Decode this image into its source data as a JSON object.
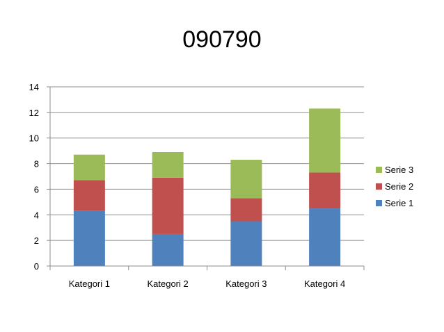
{
  "slide": {
    "title": "090790"
  },
  "chart_data": {
    "type": "bar",
    "stacked": true,
    "title": "090790",
    "categories": [
      "Kategori 1",
      "Kategori 2",
      "Kategori 3",
      "Kategori 4"
    ],
    "series": [
      {
        "name": "Serie 1",
        "values": [
          4.3,
          2.5,
          3.5,
          4.5
        ],
        "color": "#4f81bd"
      },
      {
        "name": "Serie 2",
        "values": [
          2.4,
          4.4,
          1.8,
          2.8
        ],
        "color": "#c0504d"
      },
      {
        "name": "Serie 3",
        "values": [
          2.0,
          2.0,
          3.0,
          5.0
        ],
        "color": "#9bbb59"
      }
    ],
    "ylim": [
      0,
      14
    ],
    "yticks": [
      0,
      2,
      4,
      6,
      8,
      10,
      12,
      14
    ],
    "grid": true,
    "legend_position": "right",
    "xlabel": "",
    "ylabel": ""
  }
}
